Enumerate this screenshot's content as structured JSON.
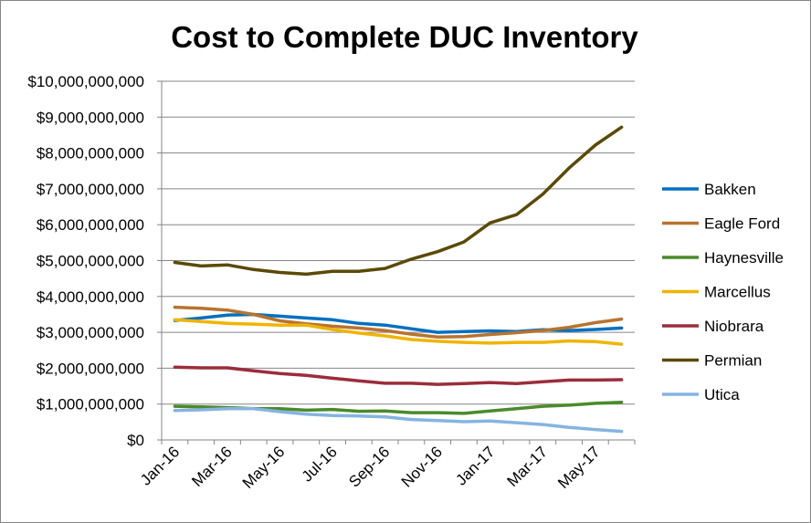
{
  "chart_data": {
    "type": "line",
    "title": "Cost to Complete DUC Inventory",
    "xlabel": "",
    "ylabel": "",
    "ylim": [
      0,
      10000000000
    ],
    "ytick_values": [
      0,
      1000000000,
      2000000000,
      3000000000,
      4000000000,
      5000000000,
      6000000000,
      7000000000,
      8000000000,
      9000000000,
      10000000000
    ],
    "ytick_labels": [
      "$0",
      "$1,000,000,000",
      "$2,000,000,000",
      "$3,000,000,000",
      "$4,000,000,000",
      "$5,000,000,000",
      "$6,000,000,000",
      "$7,000,000,000",
      "$8,000,000,000",
      "$9,000,000,000",
      "$10,000,000,000"
    ],
    "categories": [
      "Jan-16",
      "Feb-16",
      "Mar-16",
      "Apr-16",
      "May-16",
      "Jun-16",
      "Jul-16",
      "Aug-16",
      "Sep-16",
      "Oct-16",
      "Nov-16",
      "Dec-16",
      "Jan-17",
      "Feb-17",
      "Mar-17",
      "Apr-17",
      "May-17",
      "Jun-17"
    ],
    "xtick_labels": [
      "Jan-16",
      "Mar-16",
      "May-16",
      "Jul-16",
      "Sep-16",
      "Nov-16",
      "Jan-17",
      "Mar-17",
      "May-17"
    ],
    "gridlines": "horizontal",
    "legend_position": "right",
    "series": [
      {
        "name": "Bakken",
        "color": "#0070C0",
        "values": [
          3330000000,
          3400000000,
          3480000000,
          3500000000,
          3450000000,
          3400000000,
          3350000000,
          3250000000,
          3200000000,
          3100000000,
          3000000000,
          3020000000,
          3040000000,
          3020000000,
          3070000000,
          3050000000,
          3080000000,
          3120000000
        ]
      },
      {
        "name": "Eagle Ford",
        "color": "#B8732F",
        "values": [
          3700000000,
          3670000000,
          3620000000,
          3500000000,
          3320000000,
          3240000000,
          3170000000,
          3120000000,
          3050000000,
          2950000000,
          2870000000,
          2880000000,
          2940000000,
          2990000000,
          3050000000,
          3140000000,
          3270000000,
          3370000000
        ]
      },
      {
        "name": "Haynesville",
        "color": "#4A8B2A",
        "values": [
          940000000,
          920000000,
          900000000,
          870000000,
          870000000,
          830000000,
          850000000,
          800000000,
          810000000,
          760000000,
          760000000,
          740000000,
          810000000,
          870000000,
          940000000,
          970000000,
          1020000000,
          1050000000
        ]
      },
      {
        "name": "Marcellus",
        "color": "#F0B400",
        "values": [
          3350000000,
          3300000000,
          3250000000,
          3230000000,
          3200000000,
          3200000000,
          3080000000,
          2980000000,
          2900000000,
          2800000000,
          2750000000,
          2720000000,
          2700000000,
          2720000000,
          2720000000,
          2760000000,
          2740000000,
          2670000000
        ]
      },
      {
        "name": "Niobrara",
        "color": "#9B2D3C",
        "values": [
          2030000000,
          2010000000,
          2010000000,
          1930000000,
          1850000000,
          1800000000,
          1720000000,
          1650000000,
          1580000000,
          1580000000,
          1550000000,
          1570000000,
          1600000000,
          1570000000,
          1620000000,
          1670000000,
          1670000000,
          1680000000
        ]
      },
      {
        "name": "Permian",
        "color": "#5A4A05",
        "values": [
          4950000000,
          4850000000,
          4880000000,
          4750000000,
          4670000000,
          4620000000,
          4700000000,
          4700000000,
          4780000000,
          5040000000,
          5250000000,
          5520000000,
          6050000000,
          6280000000,
          6850000000,
          7580000000,
          8220000000,
          8720000000
        ]
      },
      {
        "name": "Utica",
        "color": "#85B4E0",
        "values": [
          820000000,
          840000000,
          870000000,
          870000000,
          790000000,
          720000000,
          680000000,
          670000000,
          640000000,
          570000000,
          540000000,
          510000000,
          530000000,
          480000000,
          430000000,
          350000000,
          290000000,
          240000000
        ]
      }
    ]
  }
}
